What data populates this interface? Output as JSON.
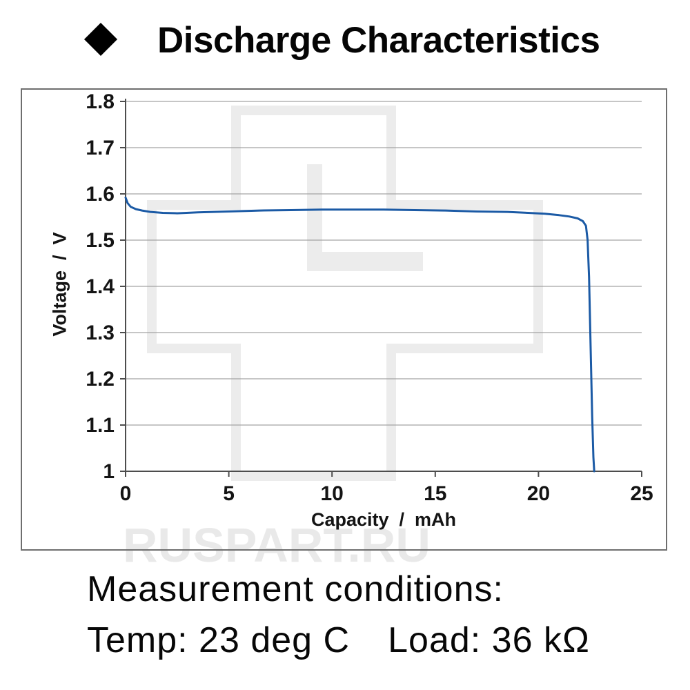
{
  "header": {
    "bullet": "diamond-marker",
    "title": "Discharge Characteristics"
  },
  "watermark": {
    "text": "RUSPART.RU"
  },
  "conditions": {
    "heading": "Measurement conditions:",
    "temp": "Temp: 23 deg C",
    "load": "Load: 36 kΩ"
  },
  "colors": {
    "curve": "#1b5aa5",
    "grid": "#a3a3a3",
    "axis": "#4d4d4d",
    "tick_text": "#141414",
    "box_border": "#6e6e6e",
    "watermark": "#ececec"
  },
  "chart_data": {
    "type": "line",
    "title": "Discharge Characteristics",
    "xlabel": "Capacity  /  mAh",
    "ylabel": "Voltage  /  V",
    "xlim": [
      0,
      25
    ],
    "ylim": [
      1.0,
      1.8
    ],
    "x_ticks": [
      0,
      5,
      10,
      15,
      20,
      25
    ],
    "x_tick_labels": [
      "0",
      "5",
      "10",
      "15",
      "20",
      "25"
    ],
    "y_ticks": [
      1.0,
      1.1,
      1.2,
      1.3,
      1.4,
      1.5,
      1.6,
      1.7,
      1.8
    ],
    "y_tick_labels": [
      "1",
      "1.1",
      "1.2",
      "1.3",
      "1.4",
      "1.5",
      "1.6",
      "1.7",
      "1.8"
    ],
    "grid": "horizontal",
    "legend": "none",
    "series": [
      {
        "name": "discharge-curve",
        "x": [
          0,
          0.1,
          0.25,
          0.5,
          0.8,
          1.2,
          1.8,
          2.5,
          3.5,
          5,
          6.5,
          8,
          9.5,
          11,
          12.5,
          14,
          15.5,
          17,
          18.5,
          19.5,
          20.3,
          21,
          21.5,
          21.9,
          22.15,
          22.3,
          22.38,
          22.45,
          22.5,
          22.55,
          22.6,
          22.66,
          22.7
        ],
        "y": [
          1.592,
          1.58,
          1.572,
          1.567,
          1.564,
          1.561,
          1.559,
          1.558,
          1.56,
          1.562,
          1.564,
          1.565,
          1.566,
          1.566,
          1.566,
          1.565,
          1.564,
          1.562,
          1.561,
          1.559,
          1.557,
          1.554,
          1.551,
          1.547,
          1.541,
          1.531,
          1.5,
          1.42,
          1.32,
          1.22,
          1.12,
          1.03,
          1.0
        ]
      }
    ]
  }
}
